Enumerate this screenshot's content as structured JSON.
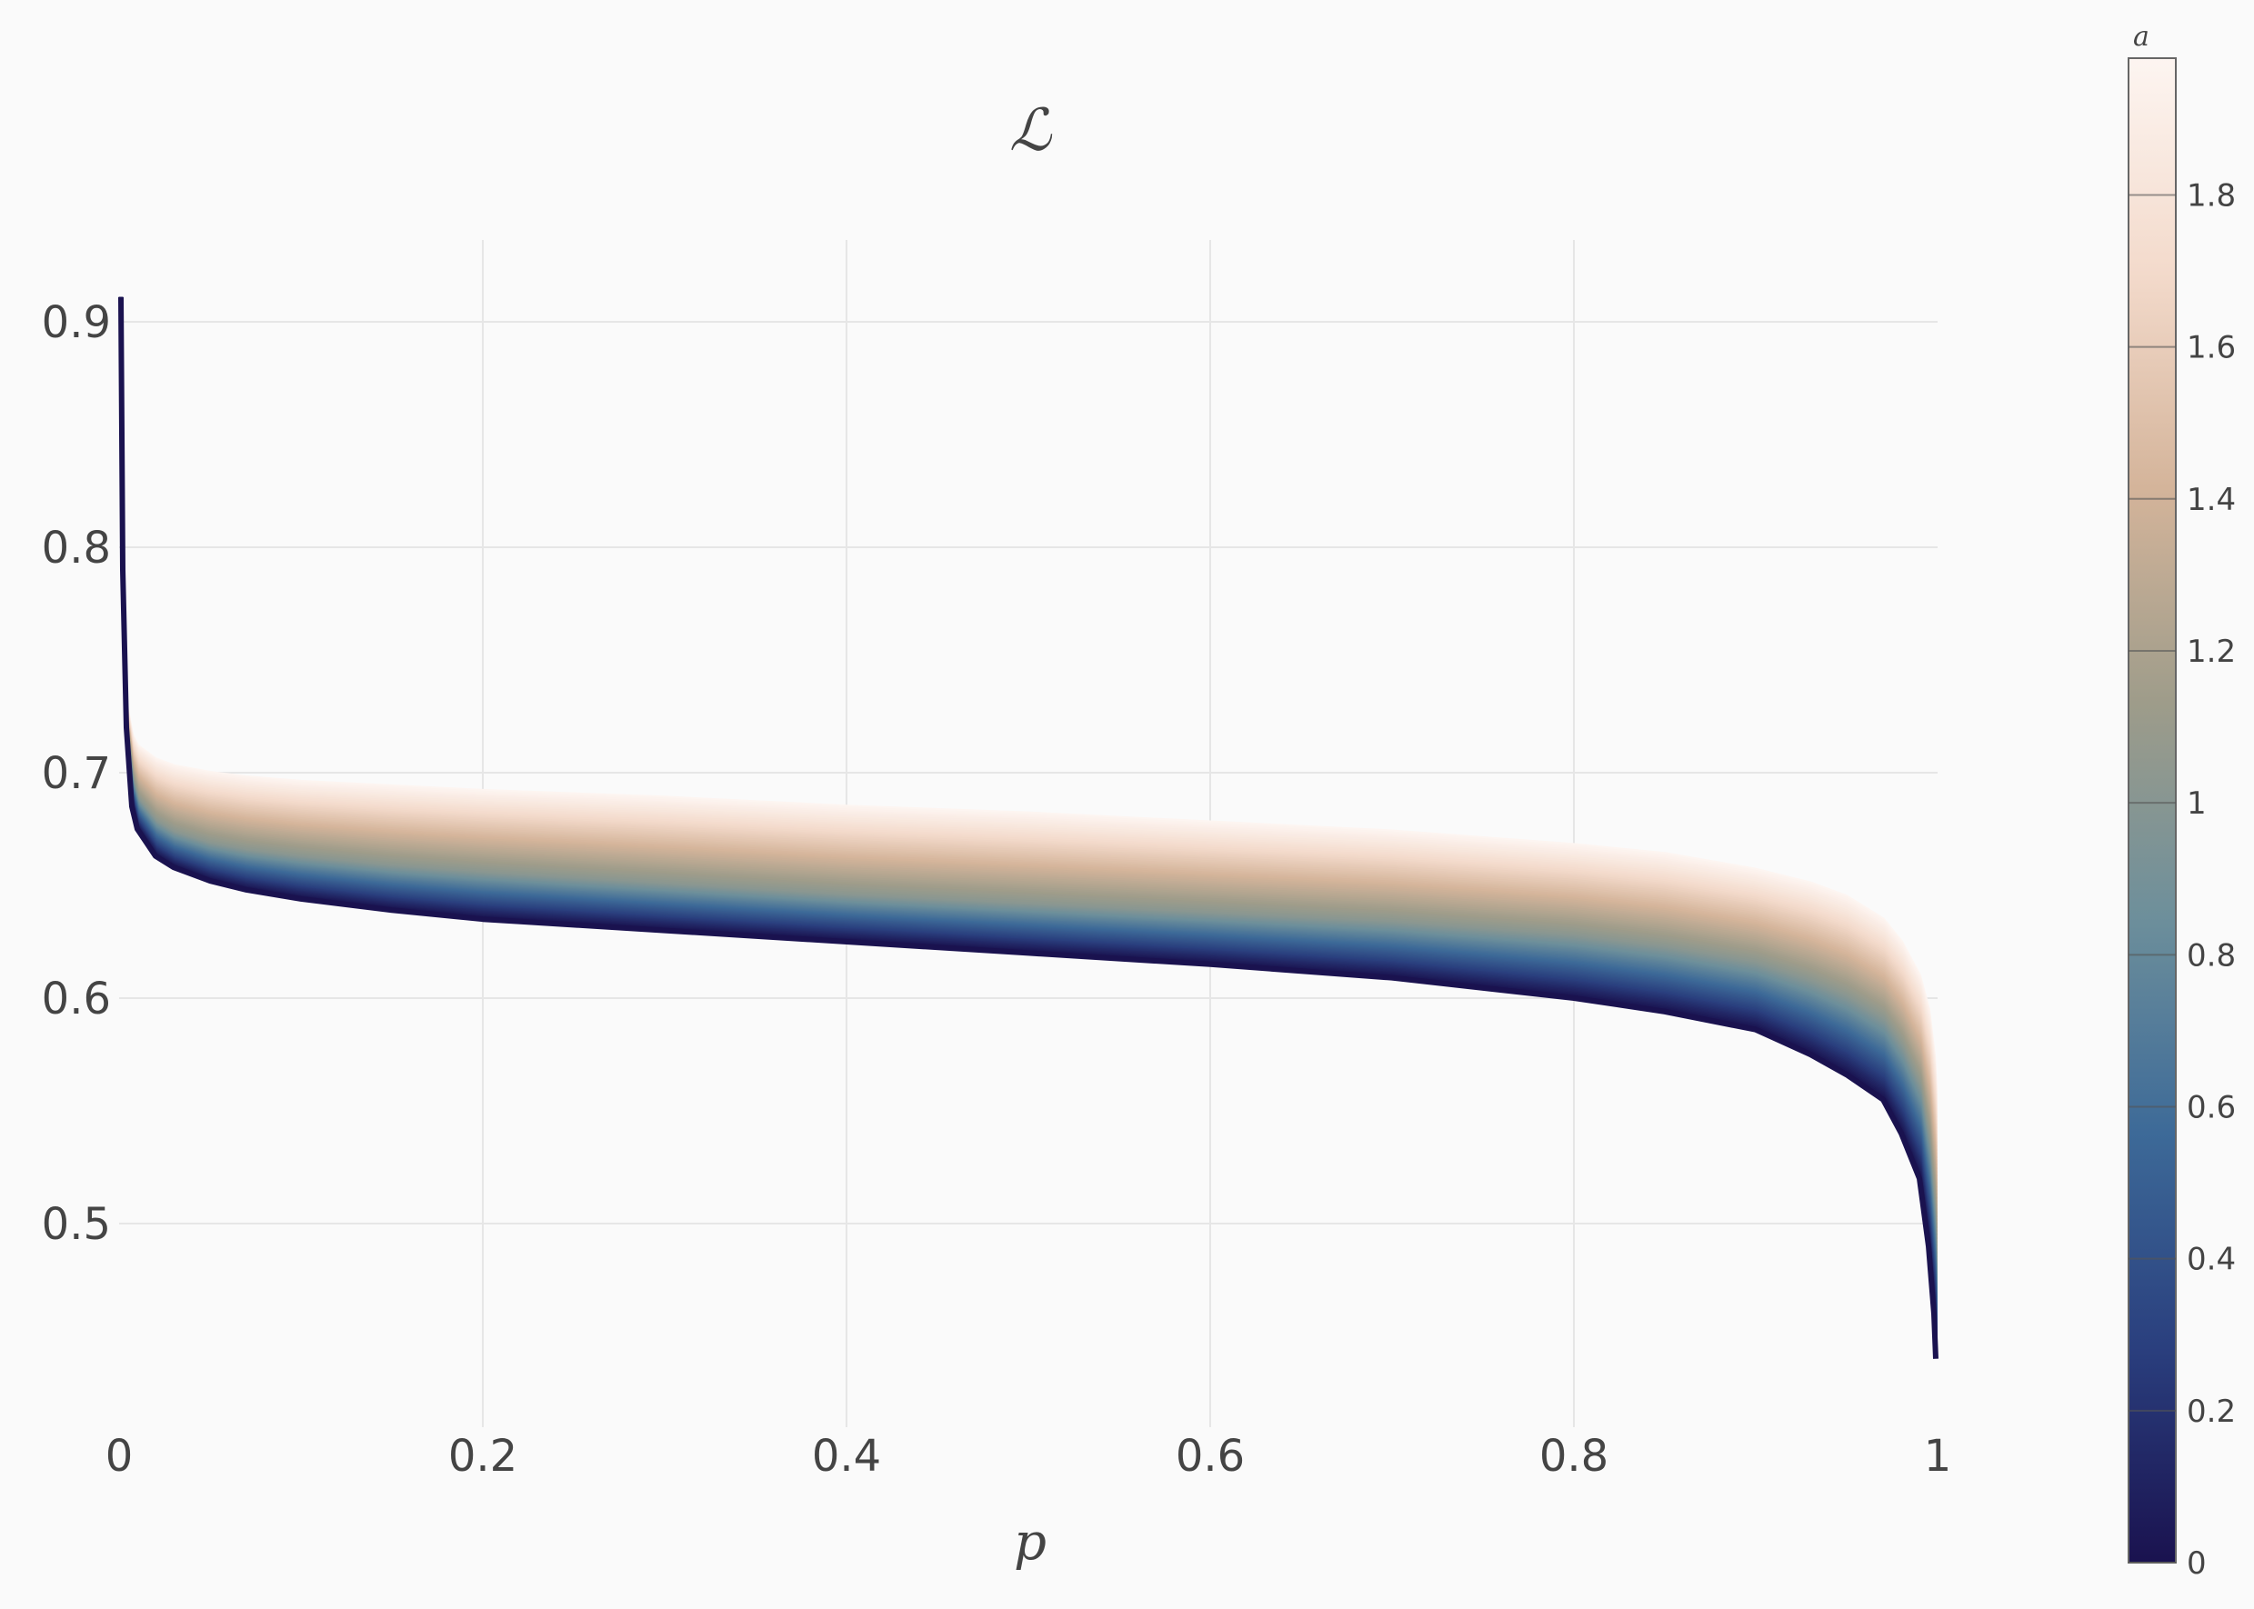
{
  "chart_data": {
    "type": "line",
    "title": "ℒ",
    "xlabel": "p",
    "ylabel": "",
    "xlim": [
      0,
      1
    ],
    "ylim": [
      0.425,
      0.935
    ],
    "x_ticks": [
      0,
      0.2,
      0.4,
      0.6,
      0.8,
      1
    ],
    "x_tick_labels": [
      "0",
      "0.2",
      "0.4",
      "0.6",
      "0.8",
      "1"
    ],
    "y_ticks": [
      0.5,
      0.6,
      0.7,
      0.8,
      0.9
    ],
    "y_tick_labels": [
      "0.5",
      "0.6",
      "0.7",
      "0.8",
      "0.9"
    ],
    "grid": true,
    "x": [
      0.001,
      0.002,
      0.004,
      0.007,
      0.01,
      0.02,
      0.03,
      0.05,
      0.07,
      0.1,
      0.15,
      0.2,
      0.3,
      0.4,
      0.5,
      0.6,
      0.7,
      0.8,
      0.85,
      0.9,
      0.93,
      0.95,
      0.97,
      0.98,
      0.99,
      0.995,
      0.998,
      0.999
    ],
    "series_description": "one curve per value of a from 0 to 1.98 in steps of 0.02; colour encodes a",
    "series": [
      {
        "a": 0,
        "values": [
          0.911,
          0.79,
          0.72,
          0.685,
          0.675,
          0.663,
          0.658,
          0.652,
          0.648,
          0.644,
          0.639,
          0.635,
          0.63,
          0.625,
          0.62,
          0.615,
          0.609,
          0.6,
          0.594,
          0.586,
          0.575,
          0.566,
          0.555,
          0.54,
          0.52,
          0.49,
          0.46,
          0.44
        ]
      },
      {
        "a": 1,
        "values": [
          0.911,
          0.79,
          0.72,
          0.697,
          0.688,
          0.678,
          0.673,
          0.668,
          0.665,
          0.662,
          0.658,
          0.655,
          0.65,
          0.645,
          0.641,
          0.637,
          0.633,
          0.627,
          0.622,
          0.615,
          0.607,
          0.6,
          0.59,
          0.578,
          0.56,
          0.535,
          0.505,
          0.48
        ]
      },
      {
        "a": 1.98,
        "values": [
          0.911,
          0.79,
          0.73,
          0.717,
          0.712,
          0.706,
          0.703,
          0.7,
          0.698,
          0.696,
          0.694,
          0.692,
          0.689,
          0.685,
          0.682,
          0.678,
          0.674,
          0.668,
          0.664,
          0.657,
          0.651,
          0.645,
          0.635,
          0.625,
          0.61,
          0.595,
          0.575,
          0.56
        ]
      }
    ],
    "colorbar": {
      "title": "a",
      "min": 0,
      "max": 1.98,
      "ticks": [
        0,
        0.2,
        0.4,
        0.6,
        0.8,
        1,
        1.2,
        1.4,
        1.6,
        1.8
      ],
      "tick_labels": [
        "0",
        "0.2",
        "0.4",
        "0.6",
        "0.8",
        "1",
        "1.2",
        "1.4",
        "1.6",
        "1.8"
      ],
      "colorscale": [
        "#1a124f",
        "#2a3f7e",
        "#3d6a98",
        "#6d8f9b",
        "#9e9c8a",
        "#d4b49a",
        "#f3dacb",
        "#fdf5f1"
      ]
    }
  }
}
